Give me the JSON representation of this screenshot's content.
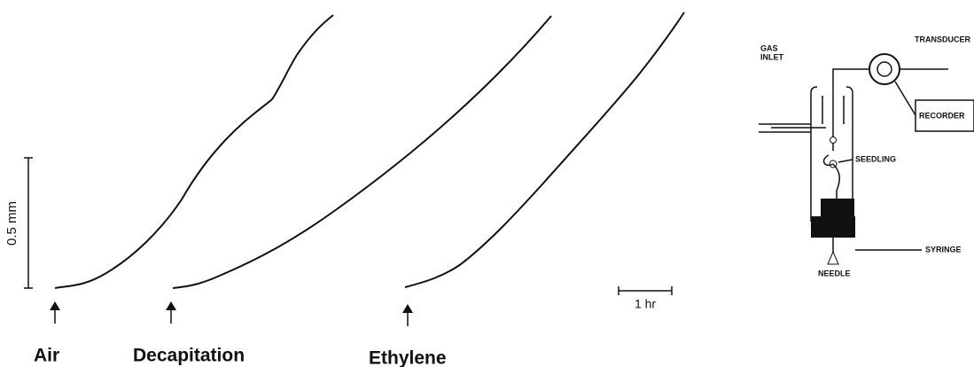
{
  "scale_bars": {
    "vertical": "0.5 mm",
    "horizontal": "1 hr"
  },
  "treatments": [
    "Air",
    "Decapitation",
    "Ethylene"
  ],
  "apparatus": {
    "transducer": "TRANSDUCER",
    "gas_inlet": [
      "GAS",
      "INLET"
    ],
    "recorder": "RECORDER",
    "seedling": "SEEDLING",
    "syringe": "SYRINGE",
    "needle": "NEEDLE"
  }
}
